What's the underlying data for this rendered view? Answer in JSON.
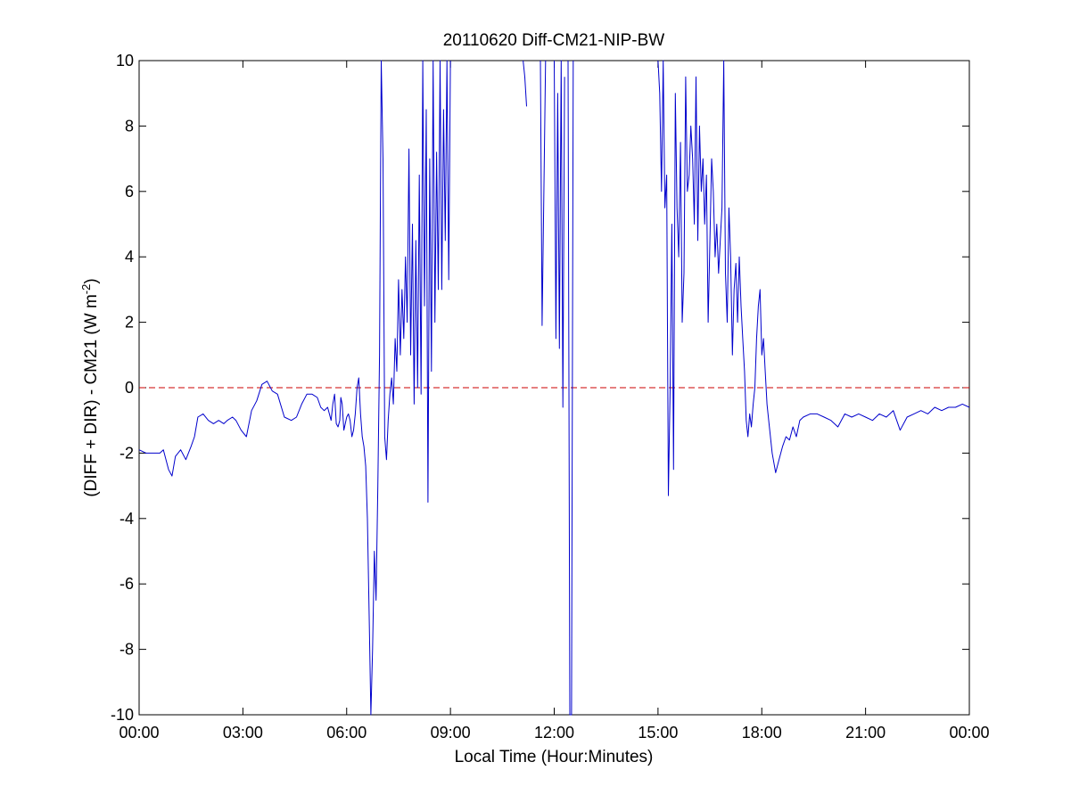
{
  "chart_data": {
    "type": "line",
    "title": "20110620 Diff-CM21-NIP-BW",
    "xlabel": "Local Time (Hour:Minutes)",
    "ylabel": {
      "base": "(DIFF + DIR) - CM21 (W m",
      "sup": "-2",
      "end": ")"
    },
    "xlim": [
      0,
      24
    ],
    "ylim": [
      -10,
      10
    ],
    "x_ticks": [
      0,
      3,
      6,
      9,
      12,
      15,
      18,
      21,
      24
    ],
    "x_tick_labels": [
      "00:00",
      "03:00",
      "06:00",
      "09:00",
      "12:00",
      "15:00",
      "18:00",
      "21:00",
      "00:00"
    ],
    "y_ticks": [
      -10,
      -8,
      -6,
      -4,
      -2,
      0,
      2,
      4,
      6,
      8,
      10
    ],
    "y_tick_labels": [
      "-10",
      "-8",
      "-6",
      "-4",
      "-2",
      "0",
      "2",
      "4",
      "6",
      "8",
      "10"
    ],
    "grid": false,
    "reference_line": {
      "y": 0,
      "color": "#cc0000",
      "style": "dashed"
    },
    "series": [
      {
        "color": "#0000cc",
        "x": [
          0.0,
          0.2,
          0.4,
          0.6,
          0.7,
          0.85,
          0.95,
          1.05,
          1.2,
          1.35,
          1.5,
          1.6,
          1.7,
          1.85,
          2.0,
          2.15,
          2.3,
          2.45,
          2.55,
          2.7,
          2.8,
          2.95,
          3.1,
          3.25,
          3.4,
          3.55,
          3.7,
          3.85,
          4.0,
          4.2,
          4.4,
          4.55,
          4.7,
          4.85,
          5.0,
          5.15,
          5.25,
          5.35,
          5.45,
          5.55,
          5.6,
          5.65,
          5.7,
          5.75,
          5.8,
          5.83,
          5.87,
          5.9,
          5.92,
          5.94,
          6.0,
          6.05,
          6.1,
          6.15,
          6.2,
          6.25,
          6.3,
          6.35,
          6.4,
          6.45,
          6.5,
          6.55,
          6.6,
          6.65,
          6.7,
          6.75,
          6.8,
          6.85,
          6.9,
          6.95,
          7.0,
          7.05,
          7.1,
          7.15,
          7.2,
          7.25,
          7.3,
          7.35,
          7.4,
          7.45,
          7.5,
          7.55,
          7.6,
          7.65,
          7.7,
          7.75,
          7.8,
          7.85,
          7.9,
          7.95,
          8.0,
          8.05,
          8.1,
          8.15,
          8.2,
          8.25,
          8.3,
          8.35,
          8.4,
          8.45,
          8.5,
          8.55,
          8.6,
          8.65,
          8.7,
          8.75,
          8.8,
          8.85,
          8.9,
          8.95,
          9.0
        ],
        "y": [
          -1.9,
          -2.0,
          -2.0,
          -2.0,
          -1.9,
          -2.5,
          -2.7,
          -2.1,
          -1.9,
          -2.2,
          -1.8,
          -1.5,
          -0.9,
          -0.8,
          -1.0,
          -1.1,
          -1.0,
          -1.1,
          -1.0,
          -0.9,
          -1.0,
          -1.3,
          -1.5,
          -0.7,
          -0.4,
          0.1,
          0.2,
          -0.1,
          -0.2,
          -0.9,
          -1.0,
          -0.9,
          -0.5,
          -0.2,
          -0.2,
          -0.3,
          -0.6,
          -0.7,
          -0.6,
          -1.0,
          -0.5,
          -0.2,
          -1.1,
          -1.2,
          -1.0,
          -0.3,
          -0.5,
          -1.0,
          -1.3,
          -1.2,
          -0.9,
          -0.8,
          -1.0,
          -1.5,
          -1.3,
          -0.8,
          0.0,
          0.3,
          -0.8,
          -1.5,
          -1.8,
          -2.4,
          -4.0,
          -7.0,
          -10.0,
          -8.0,
          -5.0,
          -6.5,
          -3.0,
          1.0,
          10.0,
          7.0,
          -1.5,
          -2.2,
          -1.0,
          -0.2,
          0.3,
          -0.5,
          1.5,
          0.5,
          3.3,
          1.0,
          3.0,
          1.5,
          4.0,
          2.0,
          7.3,
          1.0,
          5.0,
          -0.5,
          4.5,
          0.0,
          6.5,
          -0.2,
          10.0,
          2.5,
          8.5,
          -3.5,
          7.0,
          0.5,
          10.0,
          2.0,
          7.2,
          3.0,
          10.0,
          3.0,
          8.5,
          4.5,
          10.0,
          3.3,
          10.0
        ]
      },
      {
        "color": "#0000cc",
        "x": [
          11.1,
          11.15,
          11.2
        ],
        "y": [
          10.0,
          9.5,
          8.6
        ]
      },
      {
        "color": "#0000cc",
        "x": [
          11.6,
          11.65,
          11.7,
          11.75
        ],
        "y": [
          10.0,
          1.9,
          6.0,
          10.0
        ]
      },
      {
        "color": "#0000cc",
        "x": [
          12.0,
          12.05,
          12.1,
          12.15,
          12.2,
          12.25,
          12.3
        ],
        "y": [
          10.0,
          1.5,
          9.0,
          1.2,
          10.0,
          -0.6,
          9.5
        ]
      },
      {
        "color": "#0000cc",
        "x": [
          12.4,
          12.45,
          12.5,
          12.55
        ],
        "y": [
          10.0,
          -10.0,
          -10.0,
          10.0
        ]
      },
      {
        "color": "#0000cc",
        "x": [
          15.0,
          15.05,
          15.1,
          15.15,
          15.2,
          15.25,
          15.3,
          15.35,
          15.4,
          15.45,
          15.5,
          15.55,
          15.6,
          15.65,
          15.7,
          15.75,
          15.8,
          15.85,
          15.9,
          15.95,
          16.0,
          16.05,
          16.1,
          16.15,
          16.2,
          16.25,
          16.3,
          16.35,
          16.4,
          16.45,
          16.5,
          16.55,
          16.6,
          16.65,
          16.7,
          16.75,
          16.8,
          16.85,
          16.9,
          16.95,
          17.0,
          17.05,
          17.1,
          17.15,
          17.2,
          17.25,
          17.3,
          17.35,
          17.4,
          17.45,
          17.5,
          17.55,
          17.6,
          17.65,
          17.7,
          17.75,
          17.8,
          17.85,
          17.9,
          17.95,
          18.0,
          18.05,
          18.1,
          18.15,
          18.2,
          18.3,
          18.4,
          18.5,
          18.6,
          18.7,
          18.8,
          18.9,
          19.0,
          19.1,
          19.2,
          19.4,
          19.6,
          19.8,
          20.0,
          20.2,
          20.4,
          20.6,
          20.8,
          21.0,
          21.2,
          21.4,
          21.6,
          21.8,
          22.0,
          22.2,
          22.4,
          22.6,
          22.8,
          23.0,
          23.2,
          23.4,
          23.6,
          23.8,
          24.0
        ],
        "y": [
          10.0,
          9.0,
          6.0,
          10.0,
          5.5,
          6.5,
          -3.3,
          0.0,
          5.0,
          -2.5,
          9.0,
          5.5,
          4.0,
          7.5,
          2.0,
          3.5,
          9.5,
          6.0,
          6.5,
          8.0,
          7.0,
          5.0,
          9.5,
          4.5,
          8.0,
          6.0,
          7.0,
          5.0,
          6.5,
          2.0,
          4.5,
          7.0,
          6.0,
          4.0,
          5.0,
          3.5,
          4.5,
          5.5,
          10.0,
          3.5,
          2.0,
          5.5,
          4.0,
          1.0,
          3.0,
          3.8,
          2.0,
          4.0,
          2.5,
          1.5,
          0.5,
          -1.0,
          -1.5,
          -0.8,
          -1.2,
          -0.5,
          0.0,
          1.5,
          2.5,
          3.0,
          1.0,
          1.5,
          0.5,
          -0.5,
          -1.0,
          -2.0,
          -2.6,
          -2.2,
          -1.8,
          -1.5,
          -1.6,
          -1.2,
          -1.5,
          -1.0,
          -0.9,
          -0.8,
          -0.8,
          -0.9,
          -1.0,
          -1.2,
          -0.8,
          -0.9,
          -0.8,
          -0.9,
          -1.0,
          -0.8,
          -0.9,
          -0.7,
          -1.3,
          -0.9,
          -0.8,
          -0.7,
          -0.8,
          -0.6,
          -0.7,
          -0.6,
          -0.6,
          -0.5,
          -0.6
        ]
      }
    ]
  }
}
